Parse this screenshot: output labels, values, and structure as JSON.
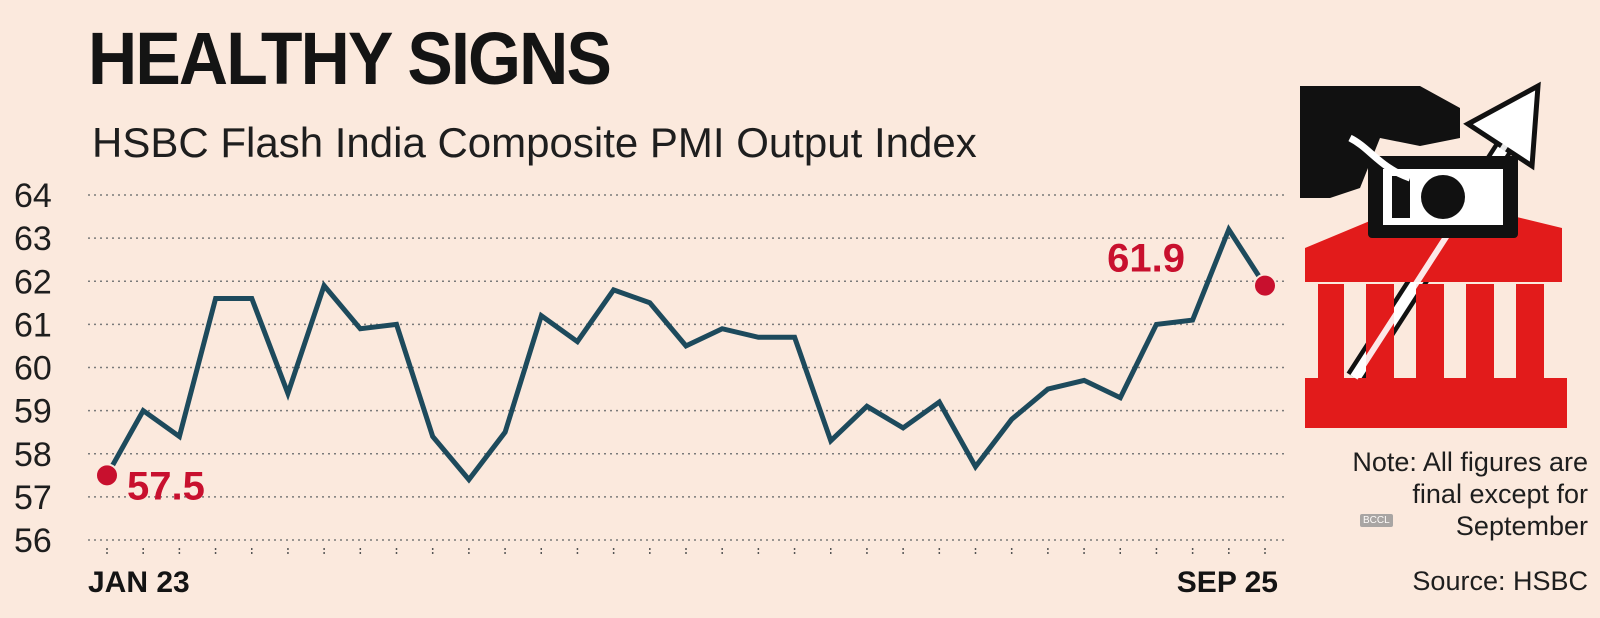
{
  "chart_data": {
    "type": "line",
    "title": "HEALTHY SIGNS",
    "subtitle": "HSBC Flash India Composite PMI Output Index",
    "xlabel": "",
    "ylabel": "",
    "ylim": [
      56,
      64
    ],
    "yticks": [
      56,
      57,
      58,
      59,
      60,
      61,
      62,
      63,
      64
    ],
    "ytick_labels": [
      "56",
      "57",
      "58",
      "59",
      "60",
      "61",
      "62",
      "63",
      "64"
    ],
    "xtick_labels": [
      "JAN 23",
      "SEP 25"
    ],
    "x": [
      "Jan 2023",
      "Feb 2023",
      "Mar 2023",
      "Apr 2023",
      "May 2023",
      "Jun 2023",
      "Jul 2023",
      "Aug 2023",
      "Sep 2023",
      "Oct 2023",
      "Nov 2023",
      "Dec 2023",
      "Jan 2024",
      "Feb 2024",
      "Mar 2024",
      "Apr 2024",
      "May 2024",
      "Jun 2024",
      "Jul 2024",
      "Aug 2024",
      "Sep 2024",
      "Oct 2024",
      "Nov 2024",
      "Dec 2024",
      "Jan 2025",
      "Feb 2025",
      "Mar 2025",
      "Apr 2025",
      "May 2025",
      "Jun 2025",
      "Jul 2025",
      "Aug 2025",
      "Sep 2025"
    ],
    "series": [
      {
        "values": [
          57.5,
          59.0,
          58.4,
          61.6,
          61.6,
          59.4,
          61.9,
          60.9,
          61.0,
          58.4,
          57.4,
          58.5,
          61.2,
          60.6,
          61.8,
          61.5,
          60.5,
          60.9,
          60.7,
          60.7,
          58.3,
          59.1,
          58.6,
          59.2,
          57.7,
          58.8,
          59.5,
          59.7,
          59.3,
          61.0,
          61.1,
          63.2,
          61.9
        ],
        "color": "#1d4a5c"
      }
    ],
    "annotations": [
      {
        "text": "57.5",
        "color": "#c8102e"
      },
      {
        "text": "61.9",
        "color": "#c8102e"
      }
    ],
    "grid": "dotted horizontal",
    "legend": "none"
  },
  "side": {
    "note": "Note: All figures are final except for September",
    "source": "Source: HSBC",
    "watermark": "BCCL"
  },
  "colors": {
    "background": "#fbe9dd",
    "line": "#1d4a5c",
    "highlight": "#c8102e",
    "illustration_red": "#e21b1b",
    "illustration_black": "#111111"
  },
  "icons": [
    "hand-dropping-money-icon",
    "bank-building-icon",
    "up-arrow-icon"
  ]
}
